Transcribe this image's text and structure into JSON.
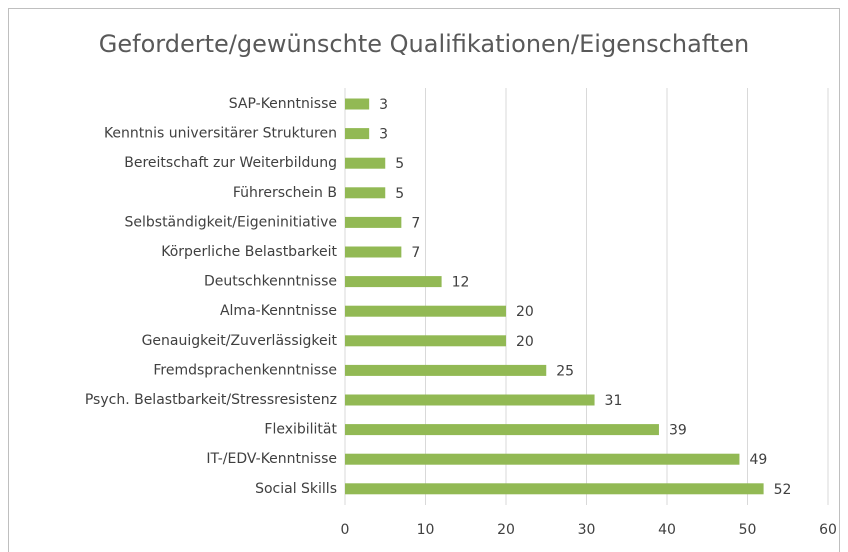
{
  "chart_data": {
    "type": "bar",
    "orientation": "horizontal",
    "title": "Geforderte/gewünschte Qualifikationen/Eigenschaften",
    "categories": [
      "SAP-Kenntnisse",
      "Kenntnis universitärer Strukturen",
      "Bereitschaft zur Weiterbildung",
      "Führerschein B",
      "Selbständigkeit/Eigeninitiative",
      "Körperliche Belastbarkeit",
      "Deutschkenntnisse",
      "Alma-Kenntnisse",
      "Genauigkeit/Zuverlässigkeit",
      "Fremdsprachenkenntnisse",
      "Psych. Belastbarkeit/Stressresistenz",
      "Flexibilität",
      "IT-/EDV-Kenntnisse",
      "Social Skills"
    ],
    "values": [
      3,
      3,
      5,
      5,
      7,
      7,
      12,
      20,
      20,
      25,
      31,
      39,
      49,
      52
    ],
    "color": "#92b954",
    "xlim": [
      0,
      60
    ],
    "xticks": [
      0,
      10,
      20,
      30,
      40,
      50,
      60
    ],
    "grid": true
  }
}
